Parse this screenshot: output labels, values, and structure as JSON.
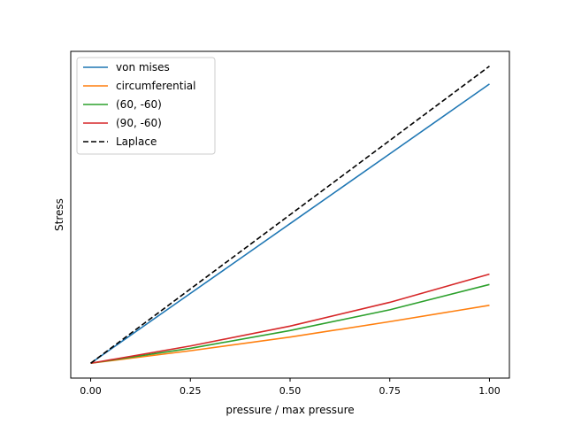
{
  "chart_data": {
    "type": "line",
    "title": "",
    "xlabel": "pressure / max pressure",
    "ylabel": "Stress",
    "xlim": [
      -0.05,
      1.05
    ],
    "ylim": [
      -0.05,
      1.05
    ],
    "x_ticks": [
      0.0,
      0.25,
      0.5,
      0.75,
      1.0
    ],
    "x_tick_labels": [
      "0.00",
      "0.25",
      "0.50",
      "0.75",
      "1.00"
    ],
    "y_ticks": [],
    "grid": false,
    "legend_position": "top-left",
    "series": [
      {
        "name": "von mises",
        "color": "#1f77b4",
        "dash": "solid",
        "x": [
          0.0,
          0.25,
          0.5,
          0.75,
          1.0
        ],
        "y": [
          0.0,
          0.235,
          0.47,
          0.705,
          0.94
        ]
      },
      {
        "name": "circumferential",
        "color": "#ff7f0e",
        "dash": "solid",
        "x": [
          0.0,
          0.25,
          0.5,
          0.75,
          1.0
        ],
        "y": [
          0.0,
          0.042,
          0.088,
          0.14,
          0.195
        ]
      },
      {
        "name": "(60, -60)",
        "color": "#2ca02c",
        "dash": "solid",
        "x": [
          0.0,
          0.25,
          0.5,
          0.75,
          1.0
        ],
        "y": [
          0.0,
          0.05,
          0.11,
          0.18,
          0.265
        ]
      },
      {
        "name": "(90, -60)",
        "color": "#d62728",
        "dash": "solid",
        "x": [
          0.0,
          0.25,
          0.5,
          0.75,
          1.0
        ],
        "y": [
          0.0,
          0.058,
          0.125,
          0.205,
          0.3
        ]
      },
      {
        "name": "Laplace",
        "color": "#000000",
        "dash": "dashed",
        "x": [
          0.0,
          0.25,
          0.5,
          0.75,
          1.0
        ],
        "y": [
          0.0,
          0.25,
          0.5,
          0.75,
          1.0
        ]
      }
    ]
  }
}
